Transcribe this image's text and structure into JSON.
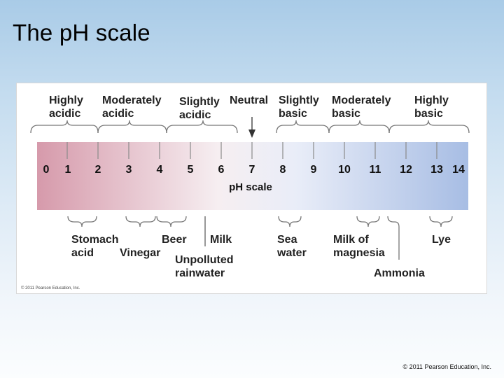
{
  "slide": {
    "title": "The pH scale",
    "copyright": "© 2011 Pearson Education, Inc."
  },
  "figure": {
    "copyright": "© 2011 Pearson Education, Inc.",
    "scale_label": "pH scale",
    "ph_values": [
      "0",
      "1",
      "2",
      "3",
      "4",
      "5",
      "6",
      "7",
      "8",
      "9",
      "10",
      "11",
      "12",
      "13",
      "14"
    ],
    "gradient_colors": [
      "#d69aab",
      "#f6eef1",
      "#e9edf8",
      "#a7bde4"
    ],
    "categories": [
      {
        "label": "Highly\nacidic"
      },
      {
        "label": "Moderately\nacidic"
      },
      {
        "label": "Slightly\nacidic"
      },
      {
        "label": "Neutral"
      },
      {
        "label": "Slightly\nbasic"
      },
      {
        "label": "Moderately\nbasic"
      },
      {
        "label": "Highly\nbasic"
      }
    ],
    "examples": [
      {
        "label": "Stomach\nacid"
      },
      {
        "label": "Vinegar"
      },
      {
        "label": "Beer"
      },
      {
        "label": "Milk"
      },
      {
        "label": "Unpolluted\nrainwater"
      },
      {
        "label": "Sea\nwater"
      },
      {
        "label": "Milk of\nmagnesia"
      },
      {
        "label": "Ammonia"
      },
      {
        "label": "Lye"
      }
    ]
  }
}
